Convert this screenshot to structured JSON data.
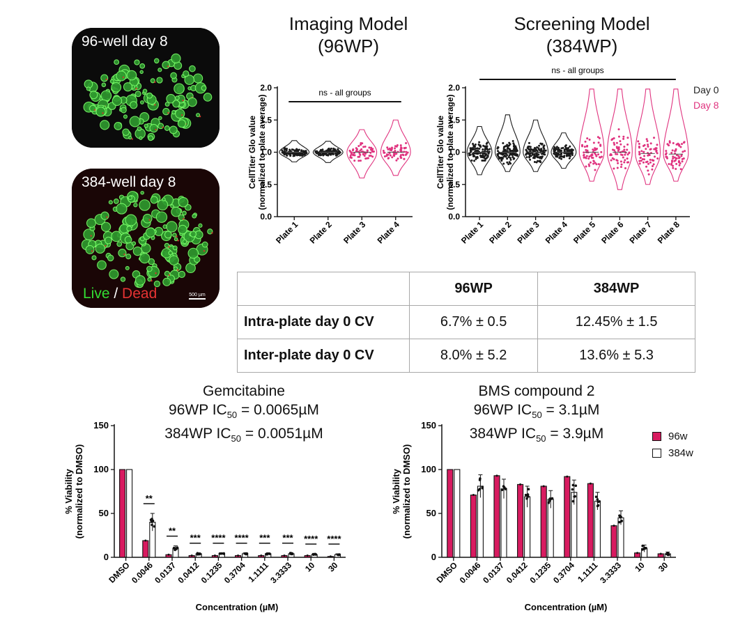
{
  "micro": [
    {
      "caption": "96-well day 8"
    },
    {
      "caption": "384-well day 8",
      "live_label": "Live",
      "sep": " / ",
      "dead_label": "Dead",
      "scale_label": "500 µm"
    }
  ],
  "headings": {
    "imaging": [
      "Imaging Model",
      "(96WP)"
    ],
    "screening": [
      "Screening Model",
      "(384WP)"
    ]
  },
  "violin_legend": {
    "day0": "Day 0",
    "day8": "Day 8"
  },
  "colors": {
    "day0": "#1a1a1a",
    "day8": "#e0337f",
    "bar96": "#d81b60",
    "bar384": "#ffffff"
  },
  "cv_table": {
    "headers": [
      "",
      "96WP",
      "384WP"
    ],
    "rows": [
      {
        "label": "Intra-plate day 0 CV",
        "wp96": "6.7% ± 0.5",
        "wp384": "12.45% ± 1.5"
      },
      {
        "label": "Inter-plate day 0 CV",
        "wp96": "8.0% ± 5.2",
        "wp384": "13.6% ± 5.3"
      }
    ]
  },
  "bar_legend": {
    "s96": "96w",
    "s384": "384w"
  },
  "chart_data": [
    {
      "type": "violin",
      "title": "",
      "ylabel": "CellTiter Glo value (normalized to plate average)",
      "ylim": [
        0,
        2.0
      ],
      "yticks": [
        "0.0",
        "0.5",
        "1.0",
        "1.5",
        "2.0"
      ],
      "categories": [
        "Plate 1",
        "Plate 2",
        "Plate 3",
        "Plate 4"
      ],
      "day": [
        "Day 0",
        "Day 0",
        "Day 8",
        "Day 8"
      ],
      "medians": [
        1.0,
        1.0,
        1.0,
        1.0
      ],
      "ranges": [
        [
          0.85,
          1.18
        ],
        [
          0.84,
          1.17
        ],
        [
          0.6,
          1.35
        ],
        [
          0.64,
          1.5
        ]
      ],
      "annotation": "ns - all groups"
    },
    {
      "type": "violin",
      "title": "",
      "ylabel": "CellTiter Glo value (normalized to plate average)",
      "ylim": [
        0,
        2.0
      ],
      "yticks": [
        "0.0",
        "0.5",
        "1.0",
        "1.5",
        "2.0"
      ],
      "categories": [
        "Plate 1",
        "Plate 2",
        "Plate 3",
        "Plate 4",
        "Plate 5",
        "Plate 6",
        "Plate 7",
        "Plate 8"
      ],
      "day": [
        "Day 0",
        "Day 0",
        "Day 0",
        "Day 0",
        "Day 8",
        "Day 8",
        "Day 8",
        "Day 8"
      ],
      "medians": [
        1.0,
        1.0,
        1.0,
        1.0,
        1.0,
        1.0,
        0.98,
        0.97
      ],
      "ranges": [
        [
          0.65,
          1.4
        ],
        [
          0.7,
          1.58
        ],
        [
          0.7,
          1.5
        ],
        [
          0.75,
          1.3
        ],
        [
          0.55,
          1.98
        ],
        [
          0.42,
          1.98
        ],
        [
          0.5,
          1.98
        ],
        [
          0.55,
          1.98
        ]
      ],
      "annotation": "ns - all groups"
    },
    {
      "type": "bar",
      "title": [
        "Gemcitabine",
        "96WP IC",
        "50",
        " = 0.0065µM",
        "384WP IC",
        "50",
        " = 0.0051µM"
      ],
      "xlabel": "Concentration (µM)",
      "ylabel": "% Viability (normalized to DMSO)",
      "ylim": [
        0,
        150
      ],
      "yticks": [
        "0",
        "50",
        "100",
        "150"
      ],
      "categories": [
        "DMSO",
        "0.0046",
        "0.0137",
        "0.0412",
        "0.1235",
        "0.3704",
        "1.1111",
        "3.3333",
        "10",
        "30"
      ],
      "series": [
        {
          "name": "96w",
          "values": [
            100,
            19,
            3,
            2,
            2,
            2,
            2,
            2,
            2,
            1
          ]
        },
        {
          "name": "384w",
          "values": [
            100,
            40,
            10,
            4,
            4,
            4,
            4,
            4,
            3,
            3
          ]
        }
      ],
      "errors": [
        0,
        10,
        3,
        1,
        1,
        1,
        1,
        1,
        1,
        1
      ],
      "significance": [
        "",
        "**",
        "**",
        "***",
        "****",
        "****",
        "***",
        "***",
        "****",
        "****"
      ]
    },
    {
      "type": "bar",
      "title": [
        "BMS compound 2",
        "96WP IC",
        "50",
        " = 3.1µM",
        "384WP IC",
        "50",
        " = 3.9µM"
      ],
      "xlabel": "Concentration (µM)",
      "ylabel": "% Viability (normalized to DMSO)",
      "ylim": [
        0,
        150
      ],
      "yticks": [
        "0",
        "50",
        "100",
        "150"
      ],
      "categories": [
        "DMSO",
        "0.0046",
        "0.0137",
        "0.0412",
        "0.1235",
        "0.3704",
        "1.1111",
        "3.3333",
        "10",
        "30"
      ],
      "series": [
        {
          "name": "96w",
          "values": [
            100,
            71,
            93,
            83,
            81,
            92,
            84,
            36,
            5,
            4
          ]
        },
        {
          "name": "384w",
          "values": [
            100,
            81,
            78,
            69,
            66,
            74,
            64,
            45,
            10,
            4
          ]
        }
      ],
      "errors": [
        0,
        13,
        11,
        12,
        10,
        14,
        10,
        8,
        4,
        2
      ]
    }
  ]
}
